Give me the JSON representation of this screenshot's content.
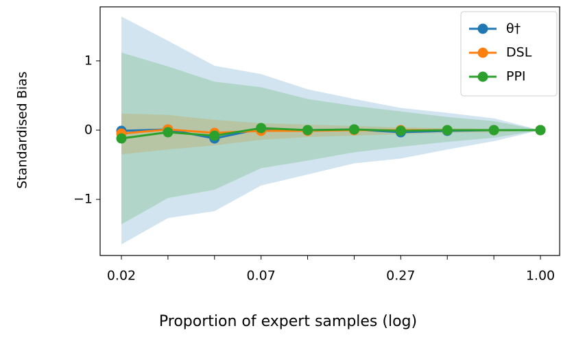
{
  "chart_data": {
    "type": "line",
    "x_label": "Proportion of expert samples (log)",
    "y_label": "Standardised Bias",
    "categories": [
      "0.02",
      null,
      null,
      "0.07",
      null,
      null,
      "0.27",
      null,
      null,
      "1.00"
    ],
    "ylim": [
      -1.81,
      1.78
    ],
    "yticks": [
      {
        "value": -1,
        "label": "−1"
      },
      0,
      1
    ],
    "legend": "upper right",
    "series": [
      {
        "name": "θ†",
        "color": "#1f77b4",
        "values": [
          -0.01,
          0.01,
          -0.12,
          0.02,
          0.0,
          0.01,
          -0.03,
          -0.01,
          0.0,
          0.0
        ],
        "upper": [
          1.64,
          1.29,
          0.93,
          0.81,
          0.59,
          0.45,
          0.32,
          0.25,
          0.17,
          0.0
        ],
        "lower": [
          -1.65,
          -1.27,
          -1.17,
          -0.8,
          -0.64,
          -0.48,
          -0.41,
          -0.28,
          -0.16,
          0.0
        ]
      },
      {
        "name": "DSL",
        "color": "#ff7f0e",
        "values": [
          -0.05,
          0.01,
          -0.04,
          -0.01,
          -0.01,
          0.0,
          0.0,
          0.0,
          0.0,
          0.0
        ],
        "upper": [
          0.24,
          0.22,
          0.15,
          0.1,
          0.08,
          0.06,
          0.04,
          0.03,
          0.02,
          0.0
        ],
        "lower": [
          -0.35,
          -0.28,
          -0.22,
          -0.14,
          -0.1,
          -0.08,
          -0.06,
          -0.04,
          -0.03,
          0.0
        ]
      },
      {
        "name": "PPI",
        "color": "#2ca02c",
        "values": [
          -0.12,
          -0.03,
          -0.08,
          0.03,
          0.0,
          0.01,
          -0.01,
          0.0,
          0.0,
          0.0
        ],
        "upper": [
          1.12,
          0.92,
          0.7,
          0.62,
          0.45,
          0.35,
          0.27,
          0.19,
          0.13,
          0.0
        ],
        "lower": [
          -1.36,
          -0.98,
          -0.86,
          -0.55,
          -0.44,
          -0.32,
          -0.24,
          -0.17,
          -0.11,
          0.0
        ]
      }
    ]
  }
}
